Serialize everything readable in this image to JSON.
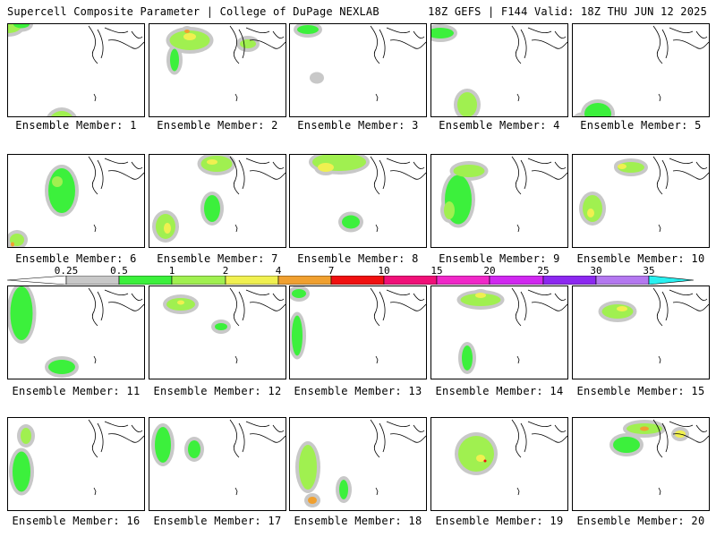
{
  "header": {
    "title_left": "Supercell Composite Parameter | College of DuPage NEXLAB",
    "title_right": "18Z GEFS | F144 Valid: 18Z THU JUN 12 2025"
  },
  "colorbar": {
    "labels": [
      "0.25",
      "0.5",
      "1",
      "2",
      "4",
      "7",
      "10",
      "15",
      "20",
      "25",
      "30",
      "35"
    ],
    "colors": [
      "#c8c8c8",
      "#3cf03c",
      "#a0f050",
      "#f0f050",
      "#f0a030",
      "#f01010",
      "#f01078",
      "#f028c8",
      "#d028f0",
      "#8c28f0",
      "#b478f0",
      "#28f0f0"
    ]
  },
  "panels": [
    {
      "caption": "Ensemble Member: 1",
      "blobs": [
        [
          0,
          2,
          30,
          16,
          "#a0f050"
        ],
        [
          15,
          0,
          18,
          9,
          "#3cf03c"
        ],
        [
          60,
          112,
          30,
          30,
          "#a0f050"
        ],
        [
          55,
          118,
          12,
          8,
          "#f0f050"
        ]
      ]
    },
    {
      "caption": "Ensemble Member: 2",
      "blobs": [
        [
          45,
          18,
          45,
          22,
          "#a0f050"
        ],
        [
          45,
          14,
          14,
          8,
          "#f0f050"
        ],
        [
          42,
          8,
          6,
          4,
          "#f0a030"
        ],
        [
          110,
          22,
          18,
          10,
          "#a0f050"
        ],
        [
          28,
          40,
          10,
          25,
          "#3cf03c"
        ]
      ]
    },
    {
      "caption": "Ensemble Member: 3",
      "blobs": [
        [
          20,
          6,
          24,
          10,
          "#3cf03c"
        ],
        [
          30,
          60,
          8,
          5,
          "#c8c8c8"
        ]
      ]
    },
    {
      "caption": "Ensemble Member: 4",
      "blobs": [
        [
          40,
          90,
          22,
          28,
          "#a0f050"
        ],
        [
          40,
          108,
          10,
          8,
          "#f0f050"
        ],
        [
          10,
          10,
          30,
          12,
          "#3cf03c"
        ]
      ]
    },
    {
      "caption": "Ensemble Member: 5",
      "blobs": [
        [
          28,
          100,
          30,
          24,
          "#3cf03c"
        ],
        [
          10,
          110,
          15,
          15,
          "#a0f050"
        ]
      ]
    },
    {
      "caption": "Ensemble Member: 6",
      "blobs": [
        [
          60,
          40,
          30,
          50,
          "#3cf03c"
        ],
        [
          10,
          95,
          16,
          14,
          "#a0f050"
        ],
        [
          5,
          100,
          4,
          5,
          "#f0a030"
        ],
        [
          55,
          30,
          12,
          12,
          "#a0f050"
        ]
      ]
    },
    {
      "caption": "Ensemble Member: 7",
      "blobs": [
        [
          75,
          10,
          35,
          18,
          "#a0f050"
        ],
        [
          70,
          8,
          12,
          6,
          "#f0f050"
        ],
        [
          18,
          80,
          22,
          28,
          "#a0f050"
        ],
        [
          20,
          82,
          8,
          12,
          "#f0f050"
        ],
        [
          70,
          60,
          18,
          30,
          "#3cf03c"
        ]
      ]
    },
    {
      "caption": "Ensemble Member: 8",
      "blobs": [
        [
          55,
          8,
          60,
          20,
          "#a0f050"
        ],
        [
          40,
          14,
          18,
          10,
          "#f0f050"
        ],
        [
          68,
          75,
          20,
          15,
          "#3cf03c"
        ]
      ]
    },
    {
      "caption": "Ensemble Member: 9",
      "blobs": [
        [
          30,
          50,
          30,
          55,
          "#3cf03c"
        ],
        [
          42,
          18,
          35,
          14,
          "#a0f050"
        ],
        [
          20,
          62,
          12,
          20,
          "#a0f050"
        ]
      ]
    },
    {
      "caption": "Ensemble Member: 10",
      "blobs": [
        [
          65,
          14,
          30,
          12,
          "#a0f050"
        ],
        [
          55,
          13,
          10,
          6,
          "#f0f050"
        ],
        [
          22,
          60,
          22,
          30,
          "#a0f050"
        ],
        [
          20,
          65,
          8,
          10,
          "#f0f050"
        ]
      ]
    },
    {
      "caption": "Ensemble Member: 11",
      "blobs": [
        [
          15,
          30,
          25,
          60,
          "#3cf03c"
        ],
        [
          60,
          90,
          30,
          16,
          "#3cf03c"
        ]
      ]
    },
    {
      "caption": "Ensemble Member: 12",
      "blobs": [
        [
          35,
          20,
          32,
          14,
          "#a0f050"
        ],
        [
          35,
          18,
          8,
          5,
          "#f0f050"
        ],
        [
          80,
          45,
          14,
          8,
          "#3cf03c"
        ]
      ]
    },
    {
      "caption": "Ensemble Member: 13",
      "blobs": [
        [
          8,
          55,
          12,
          45,
          "#3cf03c"
        ],
        [
          10,
          8,
          16,
          10,
          "#3cf03c"
        ]
      ]
    },
    {
      "caption": "Ensemble Member: 14",
      "blobs": [
        [
          55,
          15,
          45,
          14,
          "#a0f050"
        ],
        [
          55,
          10,
          12,
          6,
          "#f0f050"
        ],
        [
          40,
          80,
          12,
          28,
          "#3cf03c"
        ]
      ]
    },
    {
      "caption": "Ensemble Member: 15",
      "blobs": [
        [
          50,
          28,
          35,
          16,
          "#a0f050"
        ],
        [
          55,
          25,
          12,
          6,
          "#f0f050"
        ]
      ]
    },
    {
      "caption": "Ensemble Member: 16",
      "blobs": [
        [
          15,
          60,
          20,
          45,
          "#3cf03c"
        ],
        [
          20,
          20,
          12,
          18,
          "#a0f050"
        ]
      ]
    },
    {
      "caption": "Ensemble Member: 17",
      "blobs": [
        [
          15,
          30,
          18,
          40,
          "#3cf03c"
        ],
        [
          50,
          35,
          14,
          20,
          "#3cf03c"
        ]
      ]
    },
    {
      "caption": "Ensemble Member: 18",
      "blobs": [
        [
          20,
          55,
          20,
          50,
          "#a0f050"
        ],
        [
          25,
          92,
          10,
          8,
          "#f0a030"
        ],
        [
          60,
          80,
          10,
          22,
          "#3cf03c"
        ]
      ]
    },
    {
      "caption": "Ensemble Member: 19",
      "blobs": [
        [
          50,
          40,
          40,
          40,
          "#a0f050"
        ],
        [
          55,
          45,
          10,
          8,
          "#f0f050"
        ],
        [
          60,
          48,
          3,
          3,
          "#f01010"
        ]
      ]
    },
    {
      "caption": "Ensemble Member: 20",
      "blobs": [
        [
          80,
          12,
          40,
          12,
          "#a0f050"
        ],
        [
          80,
          12,
          10,
          5,
          "#f0a030"
        ],
        [
          60,
          30,
          30,
          18,
          "#3cf03c"
        ],
        [
          120,
          18,
          12,
          8,
          "#f0f050"
        ]
      ]
    }
  ]
}
